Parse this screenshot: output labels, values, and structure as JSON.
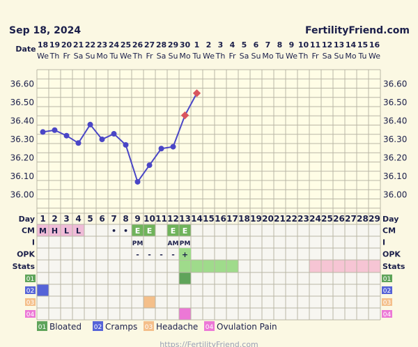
{
  "header": {
    "date": "Sep 18, 2024",
    "site": "FertilityFriend.com"
  },
  "footer": {
    "url": "https://FertilityFriend.com"
  },
  "colors": {
    "bg": "#fbf8e3",
    "grid": "#b9b6a5",
    "line": "#4a46c6",
    "point": "#4a46c6",
    "projected": "#d9555e",
    "cm": "#f0bcd8",
    "green": "#6fb35b",
    "lightgreen": "#9fdb8b",
    "pinkband": "#f6c5d4",
    "legend1": "#5fa45a",
    "legend2": "#5563d8",
    "legend3": "#f4bf8a",
    "legend4": "#ec78d6"
  },
  "rows": {
    "date": "Date",
    "day": "Day",
    "cm": "CM",
    "i": "I",
    "opk": "OPK",
    "stats": "Stats",
    "dates": [
      "18",
      "19",
      "20",
      "21",
      "22",
      "23",
      "24",
      "25",
      "26",
      "27",
      "28",
      "29",
      "30",
      "1",
      "2",
      "3",
      "4",
      "5",
      "6",
      "7",
      "8",
      "9",
      "10",
      "11",
      "12",
      "13",
      "14",
      "15",
      "16"
    ],
    "weekdays": [
      "We",
      "Th",
      "Fr",
      "Sa",
      "Su",
      "Mo",
      "Tu",
      "We",
      "Th",
      "Fr",
      "Sa",
      "Su",
      "Mo",
      "Tu",
      "We",
      "Th",
      "Fr",
      "Sa",
      "Su",
      "Mo",
      "Tu",
      "We",
      "Th",
      "Fr",
      "Sa",
      "Su",
      "Mo",
      "Tu",
      "We"
    ],
    "cycle_days": [
      "1",
      "2",
      "3",
      "4",
      "5",
      "6",
      "7",
      "8",
      "9",
      "10",
      "11",
      "12",
      "13",
      "14",
      "15",
      "16",
      "17",
      "18",
      "19",
      "20",
      "21",
      "22",
      "23",
      "24",
      "25",
      "26",
      "27",
      "28",
      "29"
    ],
    "cm_values": [
      "M",
      "H",
      "L",
      "L",
      "",
      "",
      "•",
      "•",
      "E",
      "E",
      "",
      "E",
      "E",
      "",
      "",
      "",
      "",
      "",
      "",
      "",
      "",
      "",
      "",
      "",
      "",
      "",
      "",
      "",
      ""
    ],
    "i_values": [
      "",
      "",
      "",
      "",
      "",
      "",
      "",
      "",
      "PM",
      "",
      "",
      "AM",
      "PM",
      "",
      "",
      "",
      "",
      "",
      "",
      "",
      "",
      "",
      "",
      "",
      "",
      "",
      "",
      "",
      ""
    ],
    "opk_values": [
      "",
      "",
      "",
      "",
      "",
      "",
      "",
      "",
      "-",
      "-",
      "-",
      "-",
      "+",
      "",
      "",
      "",
      "",
      "",
      "",
      "",
      "",
      "",
      "",
      "",
      "",
      "",
      "",
      "",
      ""
    ]
  },
  "symptoms": [
    {
      "code": "01",
      "name": "Bloated",
      "color": "#5fa45a",
      "days": [
        13
      ]
    },
    {
      "code": "02",
      "name": "Cramps",
      "color": "#5563d8",
      "days": [
        1
      ]
    },
    {
      "code": "03",
      "name": "Headache",
      "color": "#f4bf8a",
      "days": [
        10
      ]
    },
    {
      "code": "04",
      "name": "Ovulation Pain",
      "color": "#ec78d6",
      "days": [
        13
      ]
    }
  ],
  "chart_data": {
    "type": "line",
    "title": "",
    "xlabel": "Day",
    "ylabel": "",
    "ylim": [
      35.9,
      36.65
    ],
    "yticks": [
      36.0,
      36.1,
      36.2,
      36.3,
      36.4,
      36.5,
      36.6
    ],
    "ytick_labels": [
      "36.00",
      "36.10",
      "36.20",
      "36.30",
      "36.40",
      "36.50",
      "36.60"
    ],
    "categories": [
      "1",
      "2",
      "3",
      "4",
      "5",
      "6",
      "7",
      "8",
      "9",
      "10",
      "11",
      "12",
      "13",
      "14",
      "15",
      "16",
      "17",
      "18",
      "19",
      "20",
      "21",
      "22",
      "23",
      "24",
      "25",
      "26",
      "27",
      "28",
      "29"
    ],
    "series": [
      {
        "values": [
          36.34,
          36.35,
          36.32,
          36.28,
          36.38,
          36.3,
          36.33,
          36.27,
          36.07,
          36.16,
          36.25,
          36.26,
          null,
          null,
          null,
          null,
          null,
          null,
          null,
          null,
          null,
          null,
          null,
          null,
          null,
          null,
          null,
          null,
          null
        ]
      },
      {
        "values": [
          null,
          null,
          null,
          null,
          null,
          null,
          null,
          null,
          null,
          null,
          null,
          null,
          36.43,
          36.55,
          null,
          null,
          null,
          null,
          null,
          null,
          null,
          null,
          null,
          null,
          null,
          null,
          null,
          null,
          null
        ]
      }
    ],
    "grid": true
  }
}
